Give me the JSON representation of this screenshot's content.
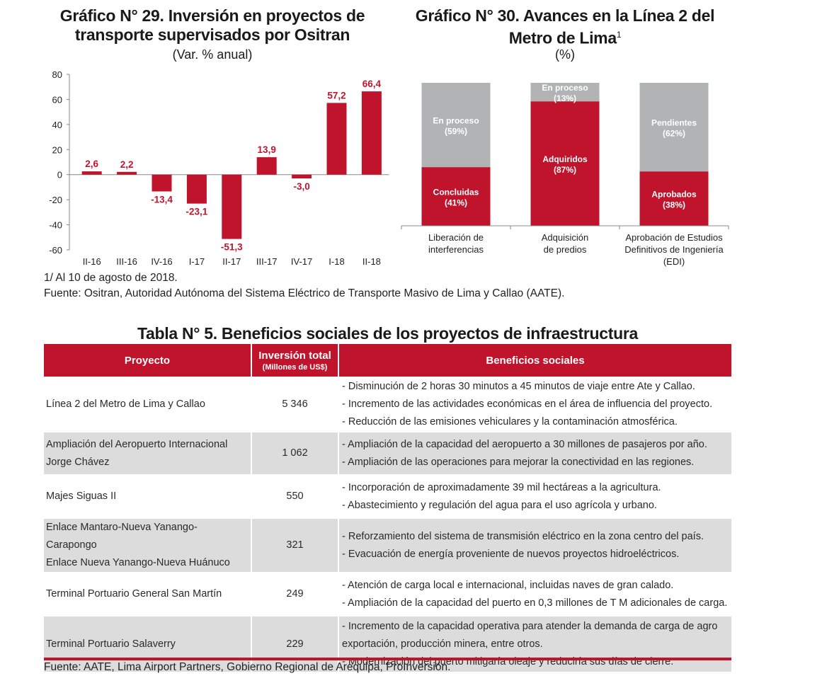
{
  "colors": {
    "red": "#c0142c",
    "gray": "#b2b3b5",
    "shade": "#dcdcdd"
  },
  "chart29": {
    "title_line1": "Gráfico N° 29. Inversión en proyectos de",
    "title_line2": "transporte supervisados por Ositran",
    "subtitle": "(Var. % anual)"
  },
  "chart30": {
    "title_line1": "Gráfico N° 30. Avances en la Línea 2 del",
    "title_line2": "Metro de Lima",
    "title_sup": "1",
    "subtitle": "(%)"
  },
  "chart_data": [
    {
      "type": "bar",
      "title": "Gráfico N° 29. Inversión en proyectos de transporte supervisados por Ositran",
      "subtitle": "(Var. % anual)",
      "categories": [
        "II-16",
        "III-16",
        "IV-16",
        "I-17",
        "II-17",
        "III-17",
        "IV-17",
        "I-18",
        "II-18"
      ],
      "values": [
        2.6,
        2.2,
        -13.4,
        -23.1,
        -51.3,
        13.9,
        -3.0,
        57.2,
        66.4
      ],
      "value_labels": [
        "2,6",
        "2,2",
        "-13,4",
        "-23,1",
        "-51,3",
        "13,9",
        "-3,0",
        "57,2",
        "66,4"
      ],
      "y_ticks": [
        "80",
        "60",
        "40",
        "20",
        "0",
        "-20",
        "-40",
        "-60"
      ],
      "ylim": [
        -60,
        80
      ],
      "grid": false,
      "color": "#c0142c"
    },
    {
      "type": "bar",
      "stacked": true,
      "title": "Gráfico N° 30. Avances en la Línea 2 del Metro de Lima",
      "subtitle": "(%)",
      "categories": [
        [
          "Liberación  de",
          "interferencias"
        ],
        [
          "Adquisición",
          "de predios"
        ],
        [
          "Aprobación  de Estudios",
          "Definitivos  de Ingeniería",
          "(EDI)"
        ]
      ],
      "series": [
        {
          "values": [
            41,
            87,
            38
          ],
          "labels": [
            "Concluidas",
            "Adquiridos",
            "Aprobados"
          ],
          "value_labels": [
            "(41%)",
            "(87%)",
            "(38%)"
          ],
          "color": "#c0142c"
        },
        {
          "values": [
            59,
            13,
            62
          ],
          "labels": [
            "En proceso",
            "En proceso",
            "Pendientes"
          ],
          "value_labels": [
            "(59%)",
            "(13%)",
            "(62%)"
          ],
          "color": "#b2b3b5"
        }
      ],
      "ylim": [
        0,
        100
      ]
    }
  ],
  "footnotes": {
    "note1": "1/ Al 10 de agosto de 2018.",
    "source1": "Fuente: Ositran, Autoridad Autónoma del Sistema Eléctrico de Transporte Masivo de Lima y Callao (AATE)."
  },
  "table": {
    "title": "Tabla N° 5. Beneficios sociales de los proyectos de infraestructura",
    "headers": {
      "proyecto": "Proyecto",
      "inversion": "Inversión total",
      "inversion_unit": "(Millones de US$)",
      "beneficios": "Beneficios sociales"
    },
    "rows": [
      {
        "proyecto": [
          "Línea 2 del Metro de Lima y Callao"
        ],
        "inversion": "5 346",
        "beneficios": [
          "- Disminución de 2 horas 30 minutos a 45 minutos de viaje entre Ate y Callao.",
          "- Incremento de las actividades económicas en el área de influencia del proyecto.",
          "- Reducción de las emisiones vehiculares y la contaminación atmosférica."
        ]
      },
      {
        "proyecto": [
          "Ampliación del Aeropuerto Internacional",
          "Jorge Chávez"
        ],
        "inversion": "1 062",
        "beneficios": [
          "- Ampliación de la capacidad del aeropuerto a 30 millones de pasajeros por año.",
          "- Ampliación de las operaciones para mejorar la conectividad en las regiones."
        ]
      },
      {
        "proyecto": [
          "Majes Siguas II"
        ],
        "inversion": "550",
        "beneficios": [
          "- Incorporación de aproximadamente 39 mil hectáreas a la agricultura.",
          "- Abastecimiento y regulación del agua para el uso agrícola y urbano."
        ]
      },
      {
        "proyecto": [
          "Enlace Mantaro-Nueva Yanango-Carapongo",
          "Enlace Nueva Yanango-Nueva Huánuco"
        ],
        "inversion": "321",
        "beneficios": [
          "- Reforzamiento del sistema de transmisión eléctrico en la zona centro del país.",
          "- Evacuación de energía proveniente de nuevos proyectos hidroeléctricos."
        ]
      },
      {
        "proyecto": [
          "Terminal Portuario General San Martín"
        ],
        "inversion": "249",
        "beneficios": [
          "- Atención de carga local e internacional, incluidas naves de gran calado.",
          "- Ampliación de la capacidad del puerto en 0,3 millones de T M adicionales de carga."
        ]
      },
      {
        "proyecto": [
          "Terminal Portuario Salaverry"
        ],
        "inversion": "229",
        "beneficios": [
          "- Incremento de la capacidad operativa para atender la demanda de carga de agro",
          "exportación, producción minera, entre otros.",
          "- Modernización del puerto mitigaría oleaje y reduciría sus días de cierre."
        ]
      }
    ],
    "source": "Fuente: AATE, Lima Airport Partners, Gobierno Regional de Arequipa, ProInversión."
  }
}
